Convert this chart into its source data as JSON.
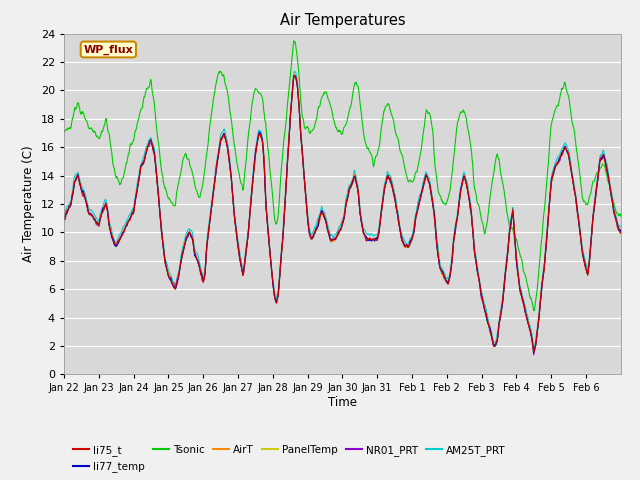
{
  "title": "Air Temperatures",
  "xlabel": "Time",
  "ylabel": "Air Temperature (C)",
  "ylim": [
    0,
    24
  ],
  "yticks": [
    0,
    2,
    4,
    6,
    8,
    10,
    12,
    14,
    16,
    18,
    20,
    22,
    24
  ],
  "date_labels": [
    "Jan 22",
    "Jan 23",
    "Jan 24",
    "Jan 25",
    "Jan 26",
    "Jan 27",
    "Jan 28",
    "Jan 29",
    "Jan 30",
    "Jan 31",
    "Feb 1",
    "Feb 2",
    "Feb 3",
    "Feb 4",
    "Feb 5",
    "Feb 6"
  ],
  "series_colors": {
    "li75_t": "#cc0000",
    "li77_temp": "#0000cc",
    "Tsonic": "#00cc00",
    "AirT": "#ff8800",
    "PanelTemp": "#cccc00",
    "NR01_PRT": "#8800cc",
    "AM25T_PRT": "#00cccc"
  },
  "legend_label": "WP_flux",
  "legend_bbox_color": "#ffffcc",
  "legend_border_color": "#cc8800",
  "plot_bg_color": "#d8d8d8",
  "fig_bg_color": "#f0f0f0",
  "grid_color": "#ffffff",
  "n_points": 960,
  "figsize": [
    6.4,
    4.8
  ],
  "dpi": 100
}
